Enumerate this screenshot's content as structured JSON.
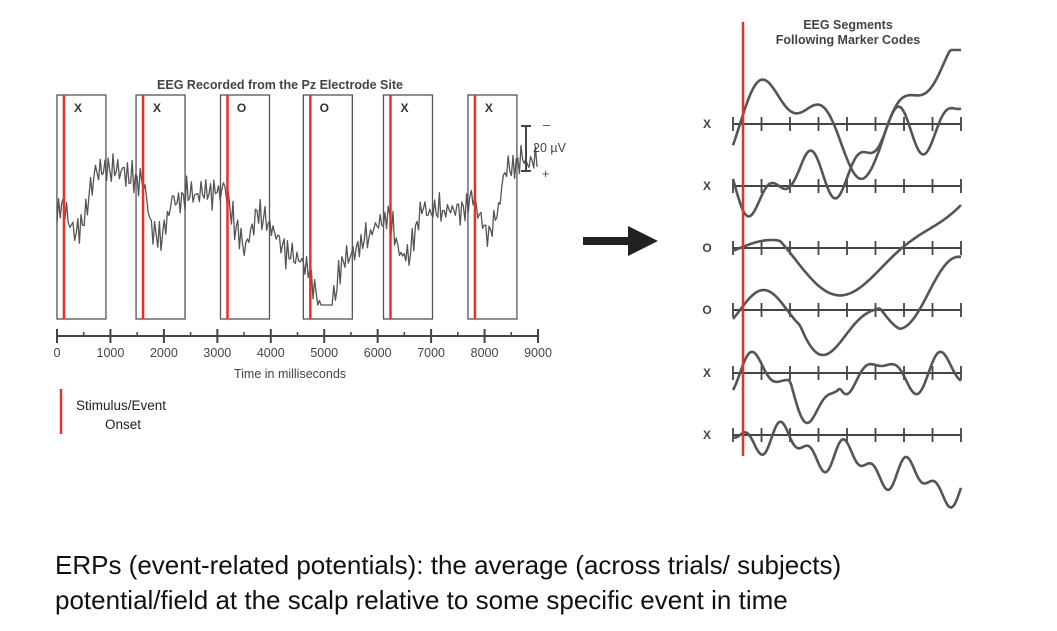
{
  "left_panel": {
    "title": "EEG Recorded from the Pz Electrode Site",
    "x_axis_label": "Time in milliseconds",
    "x_ticks": [
      "0",
      "1000",
      "2000",
      "3000",
      "4000",
      "5000",
      "6000",
      "7000",
      "8000",
      "9000"
    ],
    "scale_bar": {
      "label": "20 µV",
      "top_sign": "–",
      "bottom_sign": "+"
    },
    "trials": [
      {
        "label": "X",
        "onset_ms": 130
      },
      {
        "label": "X",
        "onset_ms": 1610
      },
      {
        "label": "O",
        "onset_ms": 3190
      },
      {
        "label": "O",
        "onset_ms": 4740
      },
      {
        "label": "X",
        "onset_ms": 6240
      },
      {
        "label": "X",
        "onset_ms": 7820
      }
    ],
    "colors": {
      "onset": "#e8302a",
      "trace": "#555555",
      "axis": "#444444"
    }
  },
  "legend": {
    "line1": "Stimulus/Event",
    "line2": "Onset"
  },
  "right_panel": {
    "title_line1": "EEG Segments",
    "title_line2": "Following Marker Codes",
    "segments": [
      {
        "label": "X"
      },
      {
        "label": "X"
      },
      {
        "label": "O"
      },
      {
        "label": "O"
      },
      {
        "label": "X"
      },
      {
        "label": "X"
      }
    ]
  },
  "caption": {
    "line1": "ERPs (event-related potentials): the average (across trials/ subjects)",
    "line2": "potential/field at the scalp relative to some specific event in time"
  }
}
